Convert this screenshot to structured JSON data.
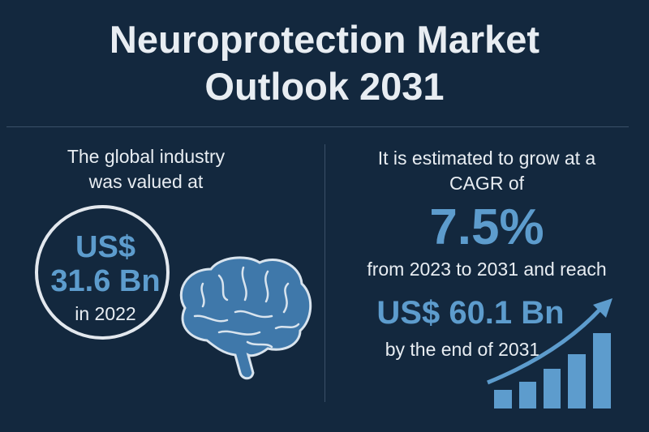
{
  "title_line1": "Neuroprotection Market",
  "title_line2": "Outlook 2031",
  "left": {
    "intro_line1": "The global industry",
    "intro_line2": "was valued at",
    "currency": "US$",
    "value": "31.6 Bn",
    "year": "in 2022"
  },
  "right": {
    "intro_line1": "It is estimated to grow at a",
    "intro_line2": "CAGR of",
    "cagr": "7.5%",
    "period": "from 2023 to 2031 and reach",
    "value": "US$ 60.1 Bn",
    "end": "by the end of 2031"
  },
  "colors": {
    "background": "#13283e",
    "accent": "#5d9ccd",
    "brain": "#3f78aa"
  },
  "icons": [
    "brain-icon",
    "growth-bar-chart-icon"
  ]
}
